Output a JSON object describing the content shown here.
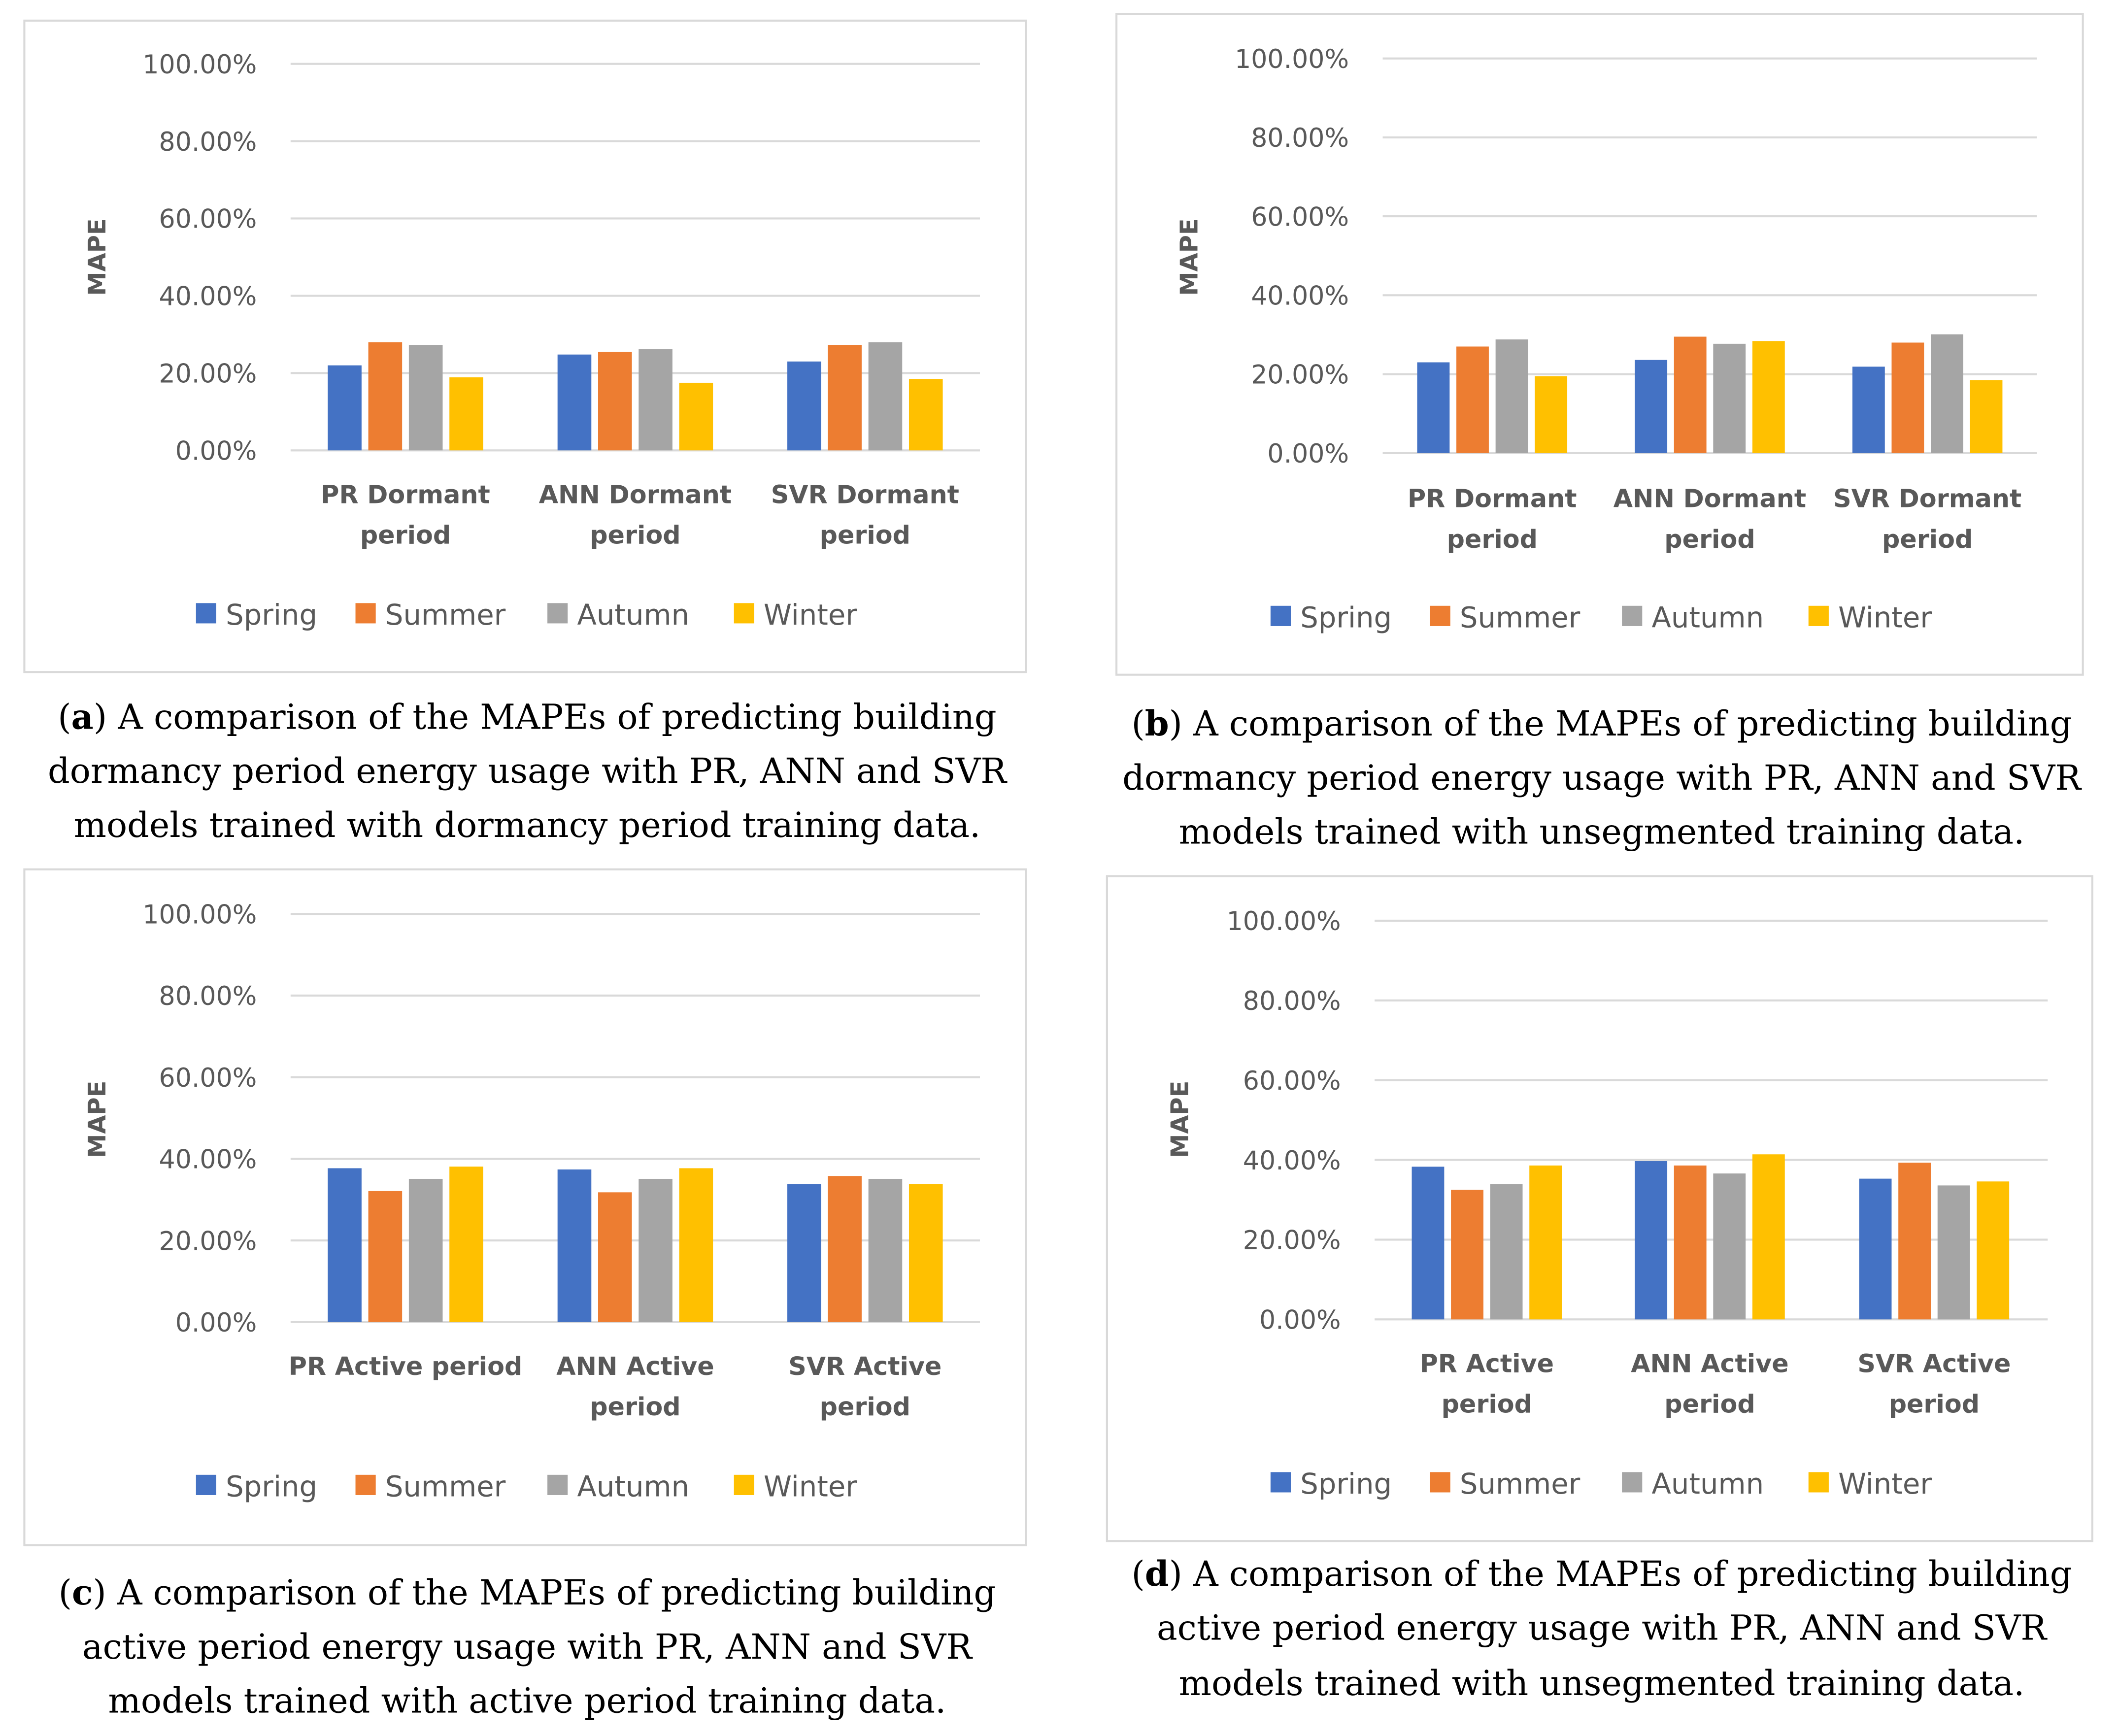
{
  "series_colors": {
    "Spring": "#4472C4",
    "Summer": "#ED7D31",
    "Autumn": "#A5A5A5",
    "Winter": "#FFC000"
  },
  "chart_data": [
    {
      "id": "a",
      "type": "bar",
      "ylabel": "MAPE",
      "ylim": [
        0,
        100
      ],
      "grid": true,
      "legend": "bottom",
      "yticks": [
        "0.00%",
        "20.00%",
        "40.00%",
        "60.00%",
        "80.00%",
        "100.00%"
      ],
      "categories": [
        [
          "PR Dormant",
          "period"
        ],
        [
          "ANN Dormant",
          "period"
        ],
        [
          "SVR Dormant",
          "period"
        ]
      ],
      "series": [
        {
          "name": "Spring",
          "values": [
            22.0,
            24.8,
            23.0
          ]
        },
        {
          "name": "Summer",
          "values": [
            28.0,
            25.5,
            27.3
          ]
        },
        {
          "name": "Autumn",
          "values": [
            27.3,
            26.2,
            28.0
          ]
        },
        {
          "name": "Winter",
          "values": [
            18.9,
            17.5,
            18.5
          ]
        }
      ],
      "caption": {
        "letter": "a",
        "lines": [
          ") A comparison of the MAPEs of predicting building",
          "dormancy period energy usage with PR, ANN and SVR",
          "models trained with dormancy period training data."
        ]
      }
    },
    {
      "id": "b",
      "type": "bar",
      "ylabel": "MAPE",
      "ylim": [
        0,
        100
      ],
      "grid": true,
      "legend": "bottom",
      "yticks": [
        "0.00%",
        "20.00%",
        "40.00%",
        "60.00%",
        "80.00%",
        "100.00%"
      ],
      "categories": [
        [
          "PR Dormant",
          "period"
        ],
        [
          "ANN Dormant",
          "period"
        ],
        [
          "SVR Dormant",
          "period"
        ]
      ],
      "series": [
        {
          "name": "Spring",
          "values": [
            23.0,
            23.6,
            21.9
          ]
        },
        {
          "name": "Summer",
          "values": [
            27.0,
            29.5,
            28.0
          ]
        },
        {
          "name": "Autumn",
          "values": [
            28.8,
            27.7,
            30.1
          ]
        },
        {
          "name": "Winter",
          "values": [
            19.5,
            28.4,
            18.5
          ]
        }
      ],
      "caption": {
        "letter": "b",
        "lines": [
          ") A comparison of the MAPEs of predicting building",
          "dormancy period energy usage with PR, ANN and SVR",
          "models trained with unsegmented training data."
        ]
      }
    },
    {
      "id": "c",
      "type": "bar",
      "ylabel": "MAPE",
      "ylim": [
        0,
        100
      ],
      "grid": true,
      "legend": "bottom",
      "yticks": [
        "0.00%",
        "20.00%",
        "40.00%",
        "60.00%",
        "80.00%",
        "100.00%"
      ],
      "categories": [
        [
          "PR Active period"
        ],
        [
          "ANN Active",
          "period"
        ],
        [
          "SVR Active",
          "period"
        ]
      ],
      "series": [
        {
          "name": "Spring",
          "values": [
            37.7,
            37.4,
            33.8
          ]
        },
        {
          "name": "Summer",
          "values": [
            32.1,
            31.8,
            35.8
          ]
        },
        {
          "name": "Autumn",
          "values": [
            35.1,
            35.1,
            35.1
          ]
        },
        {
          "name": "Winter",
          "values": [
            38.1,
            37.7,
            33.8
          ]
        }
      ],
      "caption": {
        "letter": "c",
        "lines": [
          ") A comparison of the MAPEs of predicting building",
          "active period energy usage with PR, ANN and SVR",
          "models trained with active period training data."
        ]
      }
    },
    {
      "id": "d",
      "type": "bar",
      "ylabel": "MAPE",
      "ylim": [
        0,
        100
      ],
      "grid": true,
      "legend": "bottom",
      "yticks": [
        "0.00%",
        "20.00%",
        "40.00%",
        "60.00%",
        "80.00%",
        "100.00%"
      ],
      "categories": [
        [
          "PR Active",
          "period"
        ],
        [
          "ANN Active",
          "period"
        ],
        [
          "SVR Active",
          "period"
        ]
      ],
      "series": [
        {
          "name": "Spring",
          "values": [
            38.3,
            39.7,
            35.3
          ]
        },
        {
          "name": "Summer",
          "values": [
            32.5,
            38.6,
            39.3
          ]
        },
        {
          "name": "Autumn",
          "values": [
            33.9,
            36.6,
            33.6
          ]
        },
        {
          "name": "Winter",
          "values": [
            38.6,
            41.4,
            34.6
          ]
        }
      ],
      "caption": {
        "letter": "d",
        "lines": [
          ") A comparison of the MAPEs of predicting building",
          "active period energy usage with PR, ANN and SVR",
          "models trained with unsegmented training data."
        ]
      }
    }
  ]
}
